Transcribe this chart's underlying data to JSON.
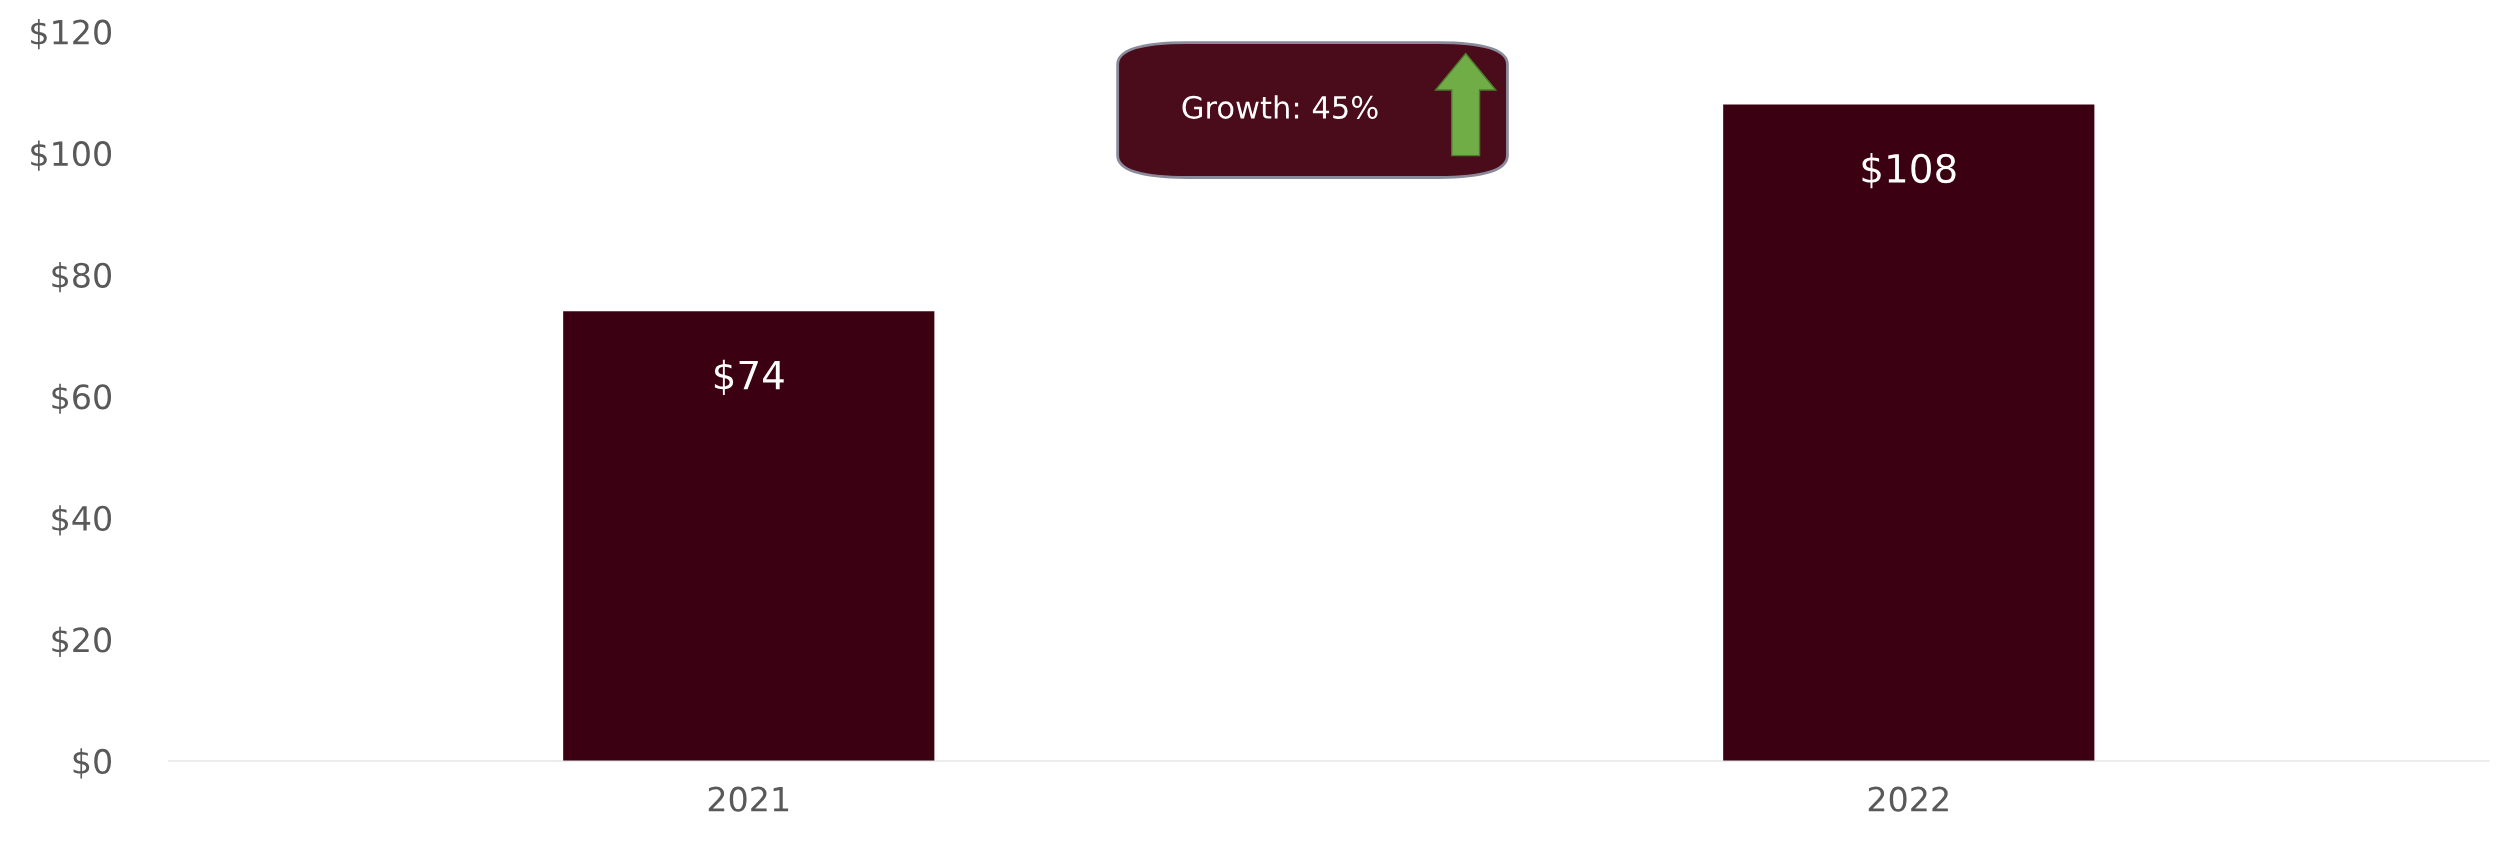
{
  "chart_data": {
    "type": "bar",
    "categories": [
      "2021",
      "2022"
    ],
    "values": [
      74,
      108
    ],
    "value_labels": [
      "$74",
      "$108"
    ],
    "color": "#3b0011",
    "ylim": [
      0,
      120
    ],
    "yticks": [
      {
        "value": 0,
        "label": "$0"
      },
      {
        "value": 20,
        "label": "$20"
      },
      {
        "value": 40,
        "label": "$40"
      },
      {
        "value": 60,
        "label": "$60"
      },
      {
        "value": 80,
        "label": "$80"
      },
      {
        "value": 100,
        "label": "$100"
      },
      {
        "value": 120,
        "label": "$120"
      }
    ],
    "annotations": [
      "Growth: 45%"
    ],
    "grid": false,
    "legend": false
  }
}
